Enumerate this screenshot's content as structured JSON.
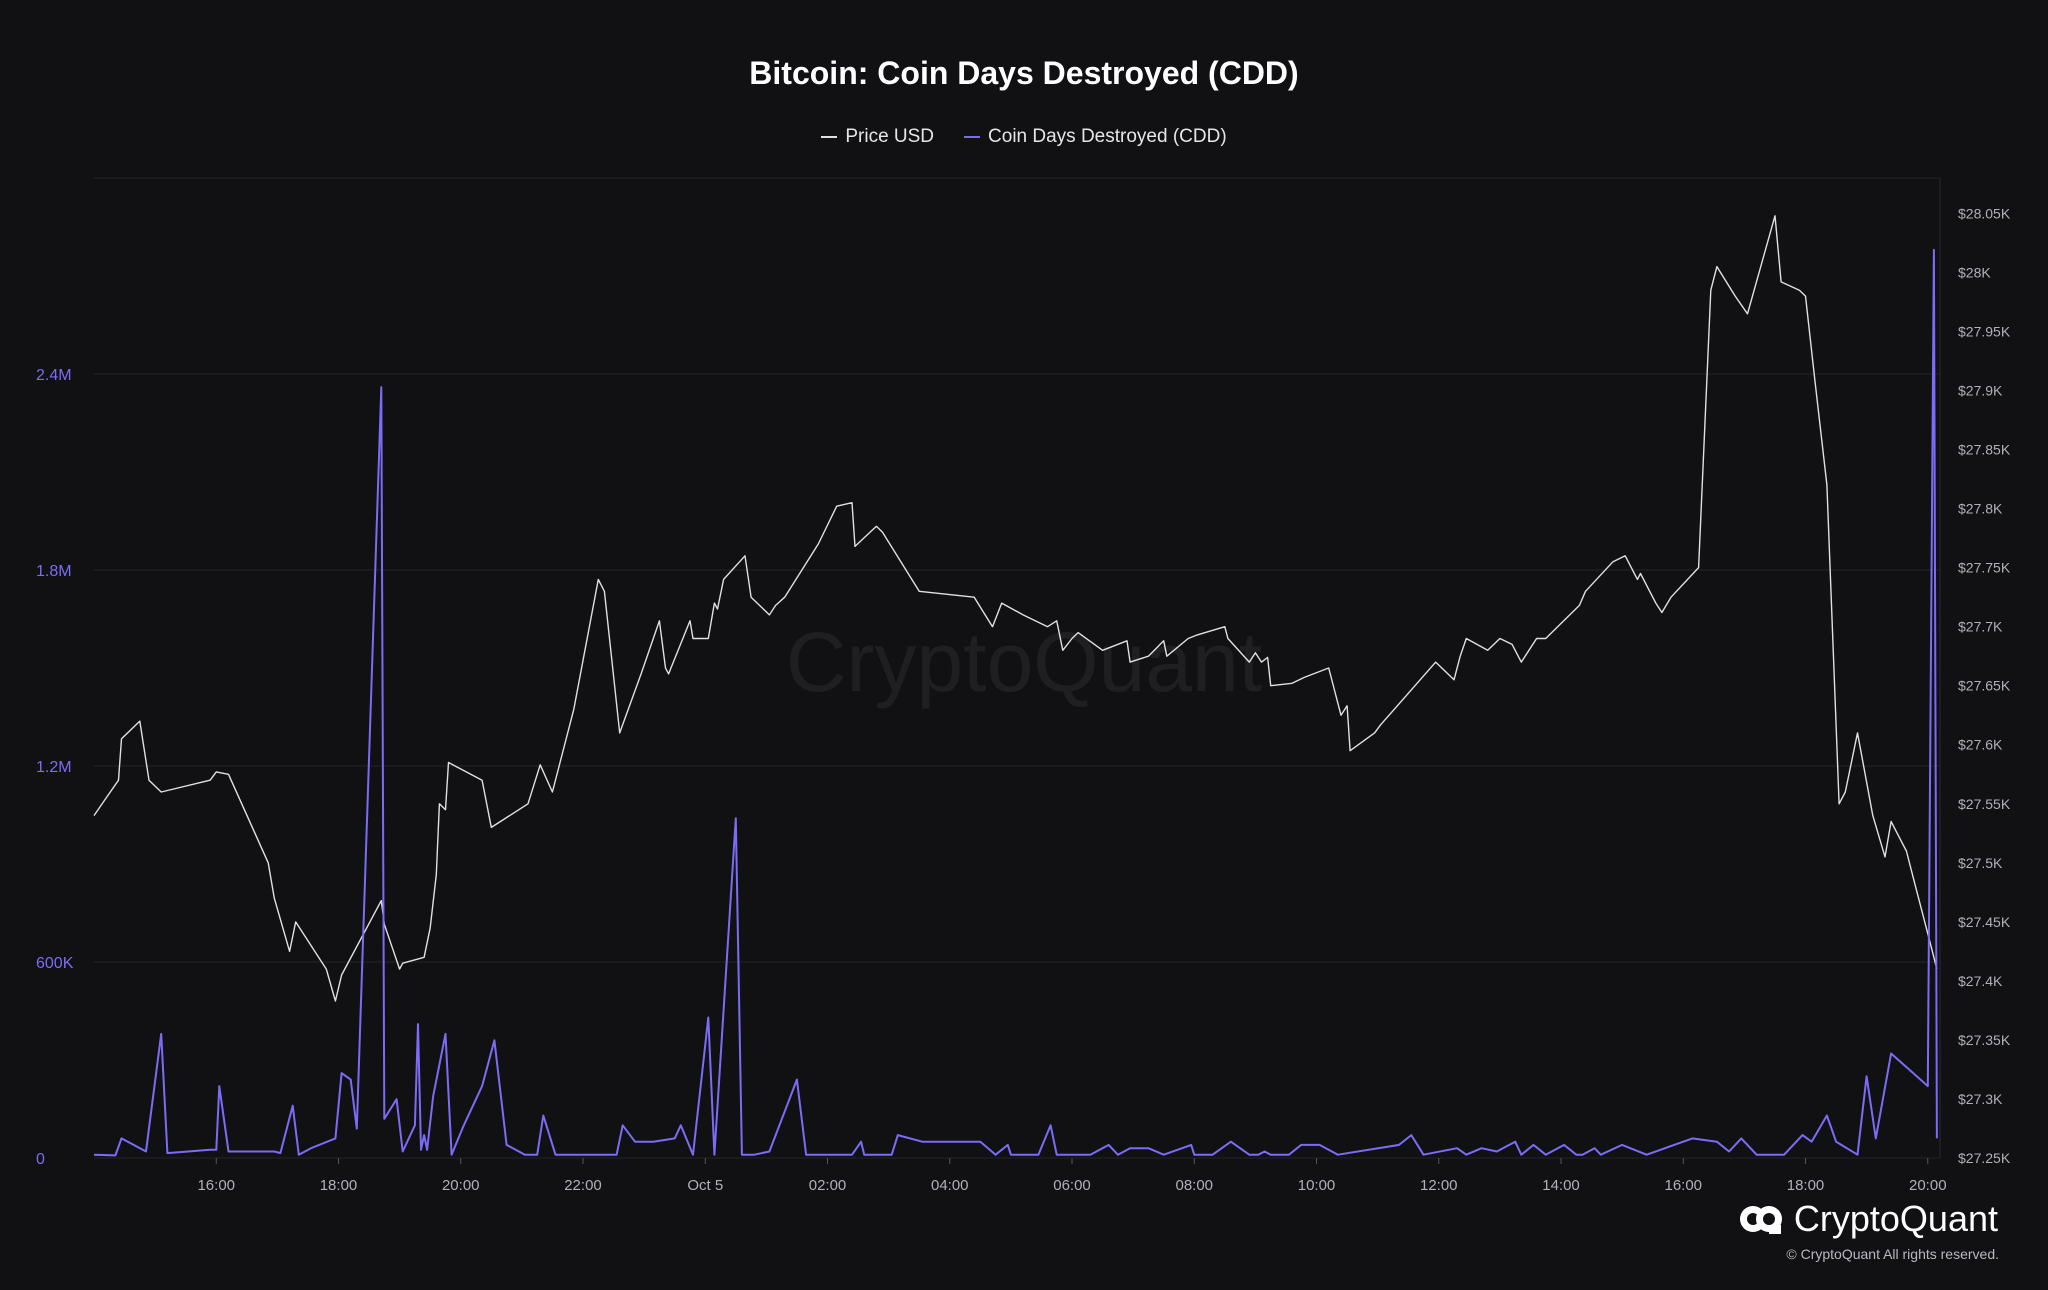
{
  "title": "Bitcoin: Coin Days Destroyed (CDD)",
  "legend": [
    {
      "name": "Price USD",
      "color": "#e0e0e0"
    },
    {
      "name": "Coin Days Destroyed (CDD)",
      "color": "#7b6cf6"
    }
  ],
  "brand": {
    "name": "CryptoQuant",
    "copyright": "© CryptoQuant All rights reserved.",
    "watermark": "CryptoQuant"
  },
  "chart_data": {
    "type": "line",
    "x_unit": "hours since 14:00 Oct 4",
    "x_range": [
      0.0,
      30.2
    ],
    "x_ticks": [
      {
        "x": 2,
        "label": "16:00"
      },
      {
        "x": 4,
        "label": "18:00"
      },
      {
        "x": 6,
        "label": "20:00"
      },
      {
        "x": 8,
        "label": "22:00"
      },
      {
        "x": 10,
        "label": "Oct 5"
      },
      {
        "x": 12,
        "label": "02:00"
      },
      {
        "x": 14,
        "label": "04:00"
      },
      {
        "x": 16,
        "label": "06:00"
      },
      {
        "x": 18,
        "label": "08:00"
      },
      {
        "x": 20,
        "label": "10:00"
      },
      {
        "x": 22,
        "label": "12:00"
      },
      {
        "x": 24,
        "label": "14:00"
      },
      {
        "x": 26,
        "label": "16:00"
      },
      {
        "x": 28,
        "label": "18:00"
      },
      {
        "x": 30,
        "label": "20:00"
      }
    ],
    "y_left": {
      "range": [
        0,
        3000000
      ],
      "ticks": [
        {
          "v": 0,
          "label": "0"
        },
        {
          "v": 600000,
          "label": "600K"
        },
        {
          "v": 1200000,
          "label": "1.2M"
        },
        {
          "v": 1800000,
          "label": "1.8M"
        },
        {
          "v": 2400000,
          "label": "2.4M"
        }
      ]
    },
    "y_right": {
      "range": [
        27250,
        28080
      ],
      "ticks": [
        {
          "v": 27250,
          "label": "$27.25K"
        },
        {
          "v": 27300,
          "label": "$27.3K"
        },
        {
          "v": 27350,
          "label": "$27.35K"
        },
        {
          "v": 27400,
          "label": "$27.4K"
        },
        {
          "v": 27450,
          "label": "$27.45K"
        },
        {
          "v": 27500,
          "label": "$27.5K"
        },
        {
          "v": 27550,
          "label": "$27.55K"
        },
        {
          "v": 27600,
          "label": "$27.6K"
        },
        {
          "v": 27650,
          "label": "$27.65K"
        },
        {
          "v": 27700,
          "label": "$27.7K"
        },
        {
          "v": 27750,
          "label": "$27.75K"
        },
        {
          "v": 27800,
          "label": "$27.8K"
        },
        {
          "v": 27850,
          "label": "$27.85K"
        },
        {
          "v": 27900,
          "label": "$27.9K"
        },
        {
          "v": 27950,
          "label": "$27.95K"
        },
        {
          "v": 28000,
          "label": "$28K"
        },
        {
          "v": 28050,
          "label": "$28.05K"
        }
      ]
    },
    "series": [
      {
        "name": "Price USD",
        "axis": "right",
        "color": "#e0e0e0",
        "points": [
          [
            0.0,
            27540
          ],
          [
            0.2,
            27555
          ],
          [
            0.4,
            27570
          ],
          [
            0.45,
            27605
          ],
          [
            0.75,
            27620
          ],
          [
            0.9,
            27570
          ],
          [
            1.1,
            27560
          ],
          [
            1.9,
            27570
          ],
          [
            2.0,
            27577
          ],
          [
            2.2,
            27575
          ],
          [
            2.85,
            27500
          ],
          [
            2.95,
            27470
          ],
          [
            3.2,
            27425
          ],
          [
            3.3,
            27450
          ],
          [
            3.8,
            27410
          ],
          [
            3.95,
            27383
          ],
          [
            4.05,
            27405
          ],
          [
            4.7,
            27468
          ],
          [
            4.75,
            27448
          ],
          [
            5.0,
            27410
          ],
          [
            5.05,
            27415
          ],
          [
            5.4,
            27420
          ],
          [
            5.5,
            27445
          ],
          [
            5.6,
            27490
          ],
          [
            5.65,
            27550
          ],
          [
            5.75,
            27545
          ],
          [
            5.8,
            27585
          ],
          [
            6.35,
            27570
          ],
          [
            6.5,
            27530
          ],
          [
            7.1,
            27550
          ],
          [
            7.3,
            27583
          ],
          [
            7.5,
            27560
          ],
          [
            7.85,
            27630
          ],
          [
            8.25,
            27740
          ],
          [
            8.35,
            27730
          ],
          [
            8.6,
            27610
          ],
          [
            8.95,
            27660
          ],
          [
            9.25,
            27705
          ],
          [
            9.35,
            27665
          ],
          [
            9.4,
            27660
          ],
          [
            9.75,
            27705
          ],
          [
            9.8,
            27690
          ],
          [
            10.05,
            27690
          ],
          [
            10.15,
            27720
          ],
          [
            10.2,
            27715
          ],
          [
            10.3,
            27740
          ],
          [
            10.65,
            27760
          ],
          [
            10.75,
            27725
          ],
          [
            11.05,
            27710
          ],
          [
            11.15,
            27718
          ],
          [
            11.3,
            27725
          ],
          [
            11.85,
            27770
          ],
          [
            12.15,
            27802
          ],
          [
            12.4,
            27805
          ],
          [
            12.45,
            27768
          ],
          [
            12.8,
            27785
          ],
          [
            12.9,
            27780
          ],
          [
            13.5,
            27730
          ],
          [
            14.4,
            27725
          ],
          [
            14.7,
            27700
          ],
          [
            14.85,
            27720
          ],
          [
            15.2,
            27710
          ],
          [
            15.6,
            27700
          ],
          [
            15.75,
            27705
          ],
          [
            15.85,
            27680
          ],
          [
            16.0,
            27690
          ],
          [
            16.1,
            27695
          ],
          [
            16.5,
            27680
          ],
          [
            16.9,
            27688
          ],
          [
            16.95,
            27670
          ],
          [
            17.25,
            27675
          ],
          [
            17.5,
            27688
          ],
          [
            17.55,
            27675
          ],
          [
            17.9,
            27690
          ],
          [
            18.05,
            27693
          ],
          [
            18.5,
            27700
          ],
          [
            18.55,
            27690
          ],
          [
            18.9,
            27670
          ],
          [
            19.0,
            27678
          ],
          [
            19.1,
            27670
          ],
          [
            19.2,
            27674
          ],
          [
            19.25,
            27650
          ],
          [
            19.6,
            27652
          ],
          [
            19.8,
            27657
          ],
          [
            20.2,
            27665
          ],
          [
            20.4,
            27625
          ],
          [
            20.5,
            27633
          ],
          [
            20.55,
            27595
          ],
          [
            20.95,
            27610
          ],
          [
            21.05,
            27617
          ],
          [
            21.95,
            27670
          ],
          [
            22.25,
            27655
          ],
          [
            22.35,
            27675
          ],
          [
            22.45,
            27690
          ],
          [
            22.8,
            27680
          ],
          [
            23.0,
            27690
          ],
          [
            23.2,
            27685
          ],
          [
            23.35,
            27670
          ],
          [
            23.6,
            27690
          ],
          [
            23.75,
            27690
          ],
          [
            24.3,
            27718
          ],
          [
            24.4,
            27730
          ],
          [
            24.85,
            27755
          ],
          [
            25.05,
            27760
          ],
          [
            25.25,
            27740
          ],
          [
            25.3,
            27745
          ],
          [
            25.55,
            27720
          ],
          [
            25.65,
            27712
          ],
          [
            25.8,
            27725
          ],
          [
            26.25,
            27750
          ],
          [
            26.45,
            27985
          ],
          [
            26.55,
            28005
          ],
          [
            26.85,
            27980
          ],
          [
            27.05,
            27965
          ],
          [
            27.5,
            28048
          ],
          [
            27.6,
            27992
          ],
          [
            27.9,
            27985
          ],
          [
            28.0,
            27980
          ],
          [
            28.15,
            27910
          ],
          [
            28.35,
            27820
          ],
          [
            28.55,
            27550
          ],
          [
            28.65,
            27560
          ],
          [
            28.85,
            27610
          ],
          [
            29.1,
            27540
          ],
          [
            29.3,
            27505
          ],
          [
            29.4,
            27535
          ],
          [
            29.5,
            27525
          ],
          [
            29.65,
            27510
          ],
          [
            29.8,
            27480
          ],
          [
            30.0,
            27440
          ],
          [
            30.15,
            27410
          ]
        ]
      },
      {
        "name": "Coin Days Destroyed (CDD)",
        "axis": "left",
        "color": "#7b6cf6",
        "points": [
          [
            0.0,
            10000
          ],
          [
            0.35,
            8000
          ],
          [
            0.45,
            60000
          ],
          [
            0.6,
            45000
          ],
          [
            0.85,
            20000
          ],
          [
            1.1,
            380000
          ],
          [
            1.2,
            15000
          ],
          [
            1.9,
            25000
          ],
          [
            2.0,
            25000
          ],
          [
            2.05,
            220000
          ],
          [
            2.2,
            20000
          ],
          [
            2.95,
            20000
          ],
          [
            3.05,
            15000
          ],
          [
            3.25,
            160000
          ],
          [
            3.35,
            10000
          ],
          [
            3.55,
            30000
          ],
          [
            3.95,
            60000
          ],
          [
            4.05,
            260000
          ],
          [
            4.2,
            240000
          ],
          [
            4.3,
            90000
          ],
          [
            4.7,
            2360000
          ],
          [
            4.75,
            120000
          ],
          [
            4.95,
            180000
          ],
          [
            5.05,
            20000
          ],
          [
            5.25,
            100000
          ],
          [
            5.3,
            410000
          ],
          [
            5.35,
            25000
          ],
          [
            5.4,
            70000
          ],
          [
            5.45,
            25000
          ],
          [
            5.55,
            190000
          ],
          [
            5.75,
            380000
          ],
          [
            5.85,
            10000
          ],
          [
            6.05,
            100000
          ],
          [
            6.35,
            220000
          ],
          [
            6.55,
            360000
          ],
          [
            6.75,
            40000
          ],
          [
            7.05,
            10000
          ],
          [
            7.25,
            10000
          ],
          [
            7.35,
            130000
          ],
          [
            7.55,
            10000
          ],
          [
            8.55,
            10000
          ],
          [
            8.65,
            100000
          ],
          [
            8.85,
            50000
          ],
          [
            9.15,
            50000
          ],
          [
            9.5,
            60000
          ],
          [
            9.6,
            100000
          ],
          [
            9.8,
            10000
          ],
          [
            10.05,
            430000
          ],
          [
            10.15,
            10000
          ],
          [
            10.5,
            1040000
          ],
          [
            10.6,
            10000
          ],
          [
            10.8,
            10000
          ],
          [
            11.05,
            20000
          ],
          [
            11.5,
            240000
          ],
          [
            11.65,
            10000
          ],
          [
            12.4,
            10000
          ],
          [
            12.55,
            50000
          ],
          [
            12.6,
            10000
          ],
          [
            13.05,
            10000
          ],
          [
            13.15,
            70000
          ],
          [
            13.55,
            50000
          ],
          [
            14.5,
            50000
          ],
          [
            14.75,
            10000
          ],
          [
            14.95,
            40000
          ],
          [
            15.0,
            10000
          ],
          [
            15.45,
            10000
          ],
          [
            15.65,
            100000
          ],
          [
            15.75,
            10000
          ],
          [
            16.1,
            10000
          ],
          [
            16.3,
            10000
          ],
          [
            16.6,
            40000
          ],
          [
            16.75,
            10000
          ],
          [
            16.95,
            30000
          ],
          [
            17.25,
            30000
          ],
          [
            17.5,
            10000
          ],
          [
            17.95,
            40000
          ],
          [
            18.0,
            10000
          ],
          [
            18.3,
            10000
          ],
          [
            18.6,
            50000
          ],
          [
            18.9,
            10000
          ],
          [
            19.05,
            10000
          ],
          [
            19.15,
            20000
          ],
          [
            19.25,
            10000
          ],
          [
            19.55,
            10000
          ],
          [
            19.75,
            40000
          ],
          [
            20.05,
            40000
          ],
          [
            20.35,
            10000
          ],
          [
            21.35,
            40000
          ],
          [
            21.55,
            70000
          ],
          [
            21.75,
            10000
          ],
          [
            22.3,
            30000
          ],
          [
            22.45,
            10000
          ],
          [
            22.7,
            30000
          ],
          [
            22.95,
            20000
          ],
          [
            23.25,
            50000
          ],
          [
            23.35,
            10000
          ],
          [
            23.55,
            40000
          ],
          [
            23.75,
            10000
          ],
          [
            24.05,
            40000
          ],
          [
            24.25,
            10000
          ],
          [
            24.35,
            10000
          ],
          [
            24.55,
            30000
          ],
          [
            24.65,
            10000
          ],
          [
            25.0,
            40000
          ],
          [
            25.4,
            10000
          ],
          [
            26.15,
            60000
          ],
          [
            26.55,
            50000
          ],
          [
            26.75,
            20000
          ],
          [
            26.95,
            60000
          ],
          [
            27.2,
            10000
          ],
          [
            27.65,
            10000
          ],
          [
            27.95,
            70000
          ],
          [
            28.1,
            50000
          ],
          [
            28.35,
            130000
          ],
          [
            28.5,
            50000
          ],
          [
            28.85,
            10000
          ],
          [
            29.0,
            250000
          ],
          [
            29.15,
            60000
          ],
          [
            29.4,
            320000
          ],
          [
            30.0,
            220000
          ],
          [
            30.1,
            2780000
          ],
          [
            30.15,
            60000
          ]
        ]
      }
    ],
    "grid": true,
    "legend_position": "top-center"
  }
}
